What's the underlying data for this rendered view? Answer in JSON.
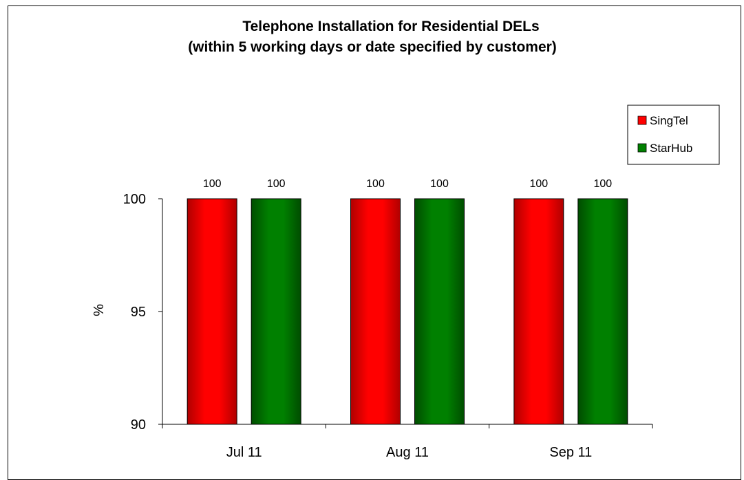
{
  "chart_data": {
    "type": "bar",
    "title": "Telephone Installation for Residential DELs",
    "subtitle": "(within 5 working days or date specified by customer)",
    "ylabel": "%",
    "xlabel": "",
    "ylim": [
      90,
      100
    ],
    "yticks": [
      "90",
      "95",
      "100"
    ],
    "categories": [
      "Jul 11",
      "Aug 11",
      "Sep 11"
    ],
    "series": [
      {
        "name": "SingTel",
        "values": [
          100,
          100,
          100
        ],
        "color": "#ff0000",
        "dark": "#b00000"
      },
      {
        "name": "StarHub",
        "values": [
          100,
          100,
          100
        ],
        "color": "#008000",
        "dark": "#004d00"
      }
    ],
    "data_labels": true,
    "grid": false,
    "legend_position": "top-right"
  }
}
